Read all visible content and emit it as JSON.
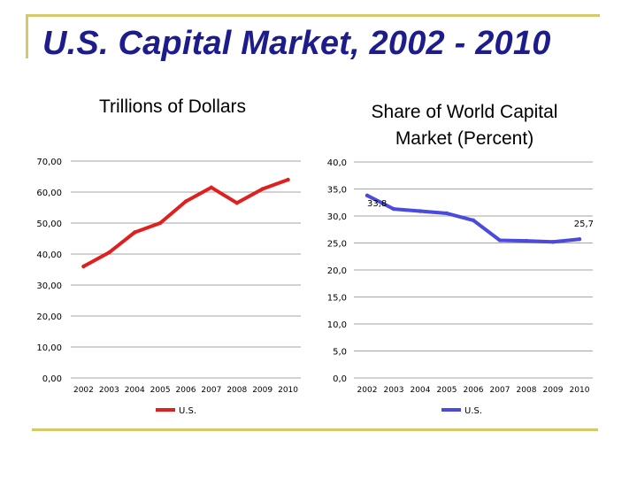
{
  "slide": {
    "title": "U.S. Capital Market, 2002 - 2010"
  },
  "colors": {
    "frame": "#d6c96a",
    "title": "#1c1c8c",
    "chart1_line": "#e01f1f",
    "chart2_line": "#4a4ae0",
    "grid": "#888888"
  },
  "chart_data": [
    {
      "type": "line",
      "title": "Trillions of Dollars",
      "categories": [
        "2002",
        "2003",
        "2004",
        "2005",
        "2006",
        "2007",
        "2008",
        "2009",
        "2010"
      ],
      "series": [
        {
          "name": "U.S.",
          "values": [
            36.0,
            40.5,
            47.0,
            50.0,
            57.0,
            61.5,
            56.5,
            61.0,
            64.0
          ]
        }
      ],
      "ylim": [
        0,
        70
      ],
      "yticks": [
        "0,00",
        "10,00",
        "20,00",
        "30,00",
        "40,00",
        "50,00",
        "60,00",
        "70,00"
      ],
      "grid": true,
      "legend": "bottom"
    },
    {
      "type": "line",
      "title": "Share of World Capital Market (Percent)",
      "categories": [
        "2002",
        "2003",
        "2004",
        "2005",
        "2006",
        "2007",
        "2008",
        "2009",
        "2010"
      ],
      "series": [
        {
          "name": "U.S.",
          "values": [
            33.8,
            31.3,
            30.9,
            30.5,
            29.2,
            25.5,
            25.4,
            25.2,
            25.7
          ]
        }
      ],
      "ylim": [
        0,
        40
      ],
      "yticks": [
        "0,0",
        "5,0",
        "10,0",
        "15,0",
        "20,0",
        "25,0",
        "30,0",
        "35,0",
        "40,0"
      ],
      "data_labels": [
        {
          "index": 0,
          "text": "33,8"
        },
        {
          "index": 8,
          "text": "25,7"
        }
      ],
      "grid": true,
      "legend": "bottom"
    }
  ]
}
